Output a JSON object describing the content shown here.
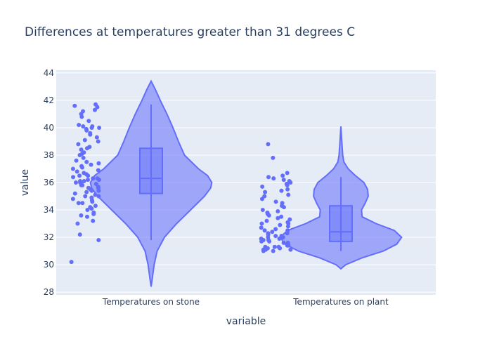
{
  "chart_data": {
    "type": "violin",
    "title": "Differences at temperatures greater than 31 degrees C",
    "xlabel": "variable",
    "ylabel": "value",
    "ylim": [
      27.8,
      44.2
    ],
    "yticks": [
      28,
      30,
      32,
      34,
      36,
      38,
      40,
      42,
      44
    ],
    "categories": [
      "Temperatures on stone",
      "Temperatures on plant"
    ],
    "grid": true,
    "colors": {
      "fill": "#636efa",
      "plot_bg": "#e5ecf6",
      "grid": "#ffffff",
      "text": "#2a3f5f"
    },
    "series": [
      {
        "category": "Temperatures on stone",
        "box": {
          "q1": 35.2,
          "median": 36.3,
          "q3": 38.5,
          "lower_fence": 31.8,
          "upper_fence": 41.7
        },
        "range": [
          28.4,
          43.4
        ],
        "density": [
          [
            28.4,
            0.0
          ],
          [
            29.0,
            0.02
          ],
          [
            30.0,
            0.05
          ],
          [
            31.0,
            0.1
          ],
          [
            32.0,
            0.22
          ],
          [
            33.0,
            0.42
          ],
          [
            34.0,
            0.65
          ],
          [
            35.0,
            0.88
          ],
          [
            35.6,
            0.98
          ],
          [
            36.0,
            1.0
          ],
          [
            36.5,
            0.93
          ],
          [
            37.0,
            0.78
          ],
          [
            38.0,
            0.55
          ],
          [
            39.0,
            0.45
          ],
          [
            40.0,
            0.36
          ],
          [
            41.0,
            0.26
          ],
          [
            42.0,
            0.15
          ],
          [
            42.8,
            0.07
          ],
          [
            43.4,
            0.0
          ]
        ],
        "points": [
          30.2,
          31.8,
          32.2,
          33.0,
          33.2,
          33.5,
          33.6,
          33.7,
          33.8,
          34.0,
          34.1,
          34.2,
          34.3,
          34.5,
          34.5,
          34.6,
          34.7,
          34.8,
          34.9,
          35.0,
          35.0,
          35.1,
          35.2,
          35.3,
          35.4,
          35.4,
          35.5,
          35.6,
          35.6,
          35.7,
          35.8,
          35.8,
          35.9,
          36.0,
          36.0,
          36.0,
          36.1,
          36.1,
          36.2,
          36.2,
          36.3,
          36.3,
          36.4,
          36.5,
          36.5,
          36.6,
          36.7,
          36.8,
          36.9,
          37.0,
          37.1,
          37.2,
          37.3,
          37.4,
          37.5,
          37.6,
          37.8,
          38.0,
          38.1,
          38.2,
          38.4,
          38.5,
          38.6,
          38.8,
          39.0,
          39.1,
          39.3,
          39.5,
          39.6,
          39.8,
          39.9,
          40.0,
          40.0,
          40.1,
          40.1,
          40.2,
          40.5,
          40.8,
          41.0,
          41.2,
          41.3,
          41.5,
          41.6,
          41.7
        ]
      },
      {
        "category": "Temperatures on plant",
        "box": {
          "q1": 31.7,
          "median": 32.4,
          "q3": 34.3,
          "lower_fence": 31.0,
          "upper_fence": 36.4
        },
        "range": [
          29.7,
          40.1
        ],
        "density": [
          [
            29.7,
            0.0
          ],
          [
            30.0,
            0.08
          ],
          [
            30.5,
            0.35
          ],
          [
            31.0,
            0.7
          ],
          [
            31.5,
            0.92
          ],
          [
            32.0,
            1.0
          ],
          [
            32.5,
            0.88
          ],
          [
            33.0,
            0.58
          ],
          [
            33.5,
            0.35
          ],
          [
            34.0,
            0.34
          ],
          [
            34.5,
            0.4
          ],
          [
            35.0,
            0.45
          ],
          [
            35.5,
            0.44
          ],
          [
            36.0,
            0.38
          ],
          [
            36.5,
            0.24
          ],
          [
            37.0,
            0.12
          ],
          [
            37.5,
            0.05
          ],
          [
            38.0,
            0.03
          ],
          [
            39.0,
            0.015
          ],
          [
            40.1,
            0.0
          ]
        ],
        "points": [
          31.0,
          31.0,
          31.1,
          31.1,
          31.1,
          31.2,
          31.2,
          31.2,
          31.3,
          31.3,
          31.3,
          31.4,
          31.4,
          31.5,
          31.5,
          31.6,
          31.6,
          31.7,
          31.7,
          31.8,
          31.8,
          31.9,
          31.9,
          32.0,
          32.0,
          32.1,
          32.1,
          32.2,
          32.3,
          32.3,
          32.4,
          32.5,
          32.5,
          32.6,
          32.7,
          32.8,
          32.9,
          33.0,
          33.0,
          33.1,
          33.2,
          33.3,
          33.4,
          33.5,
          33.6,
          33.7,
          33.8,
          33.9,
          34.0,
          34.2,
          34.3,
          34.5,
          34.6,
          34.8,
          35.0,
          35.1,
          35.3,
          35.4,
          35.5,
          35.7,
          35.8,
          35.9,
          36.0,
          36.1,
          36.2,
          36.3,
          36.4,
          36.5,
          36.7,
          37.8,
          38.8
        ]
      }
    ]
  }
}
